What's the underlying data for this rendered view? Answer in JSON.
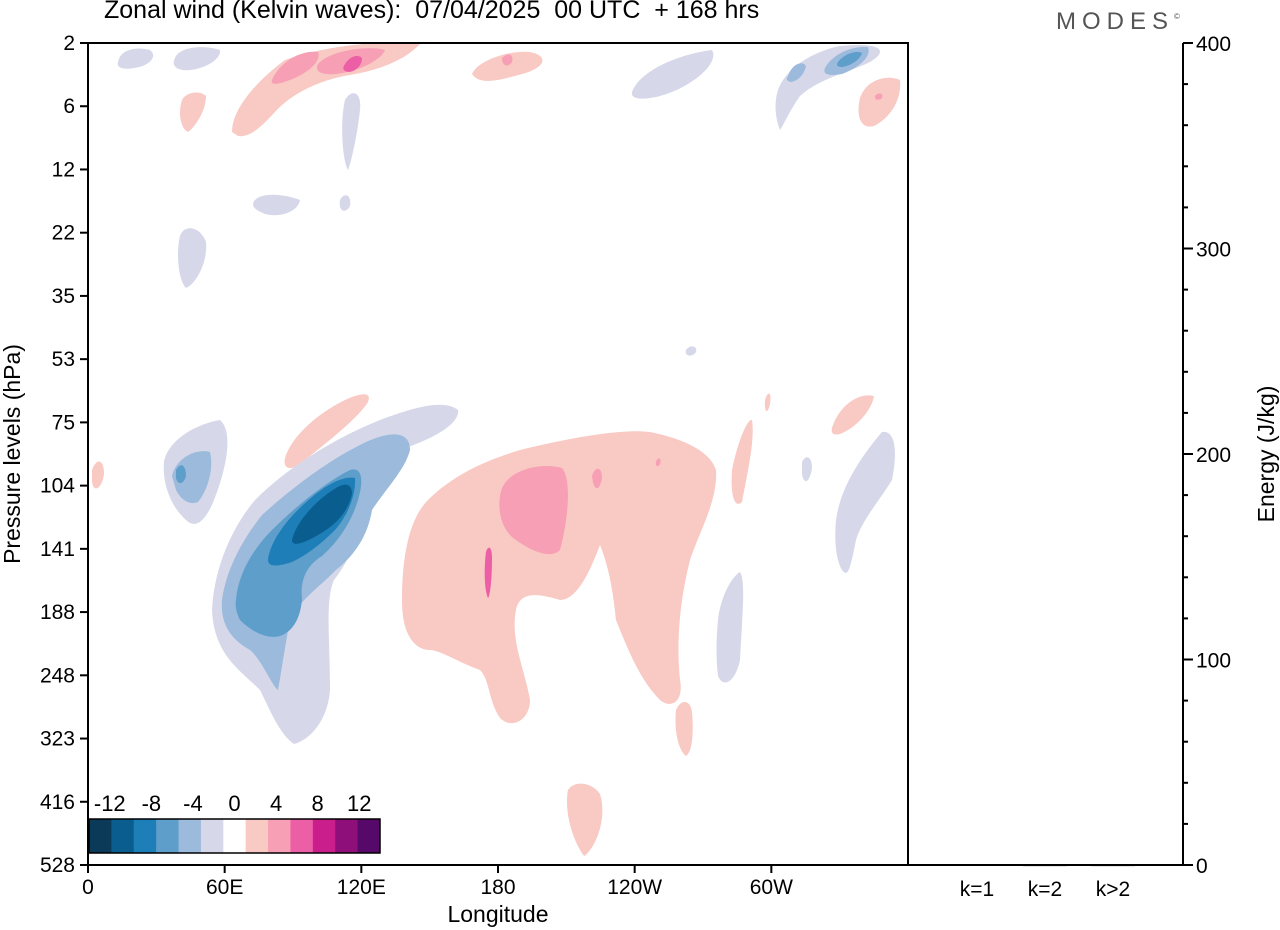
{
  "header": {
    "title": "Zonal wind (Kelvin waves):  07/04/2025  00 UTC  + 168 hrs",
    "brand": "MODES",
    "brand_mark": "©"
  },
  "colors": {
    "neg": [
      "#0b3a59",
      "#0a5e8f",
      "#1e7fb8",
      "#5e9ecb",
      "#9cbadb",
      "#d6d8ea"
    ],
    "neutral": "#ffffff",
    "pos": [
      "#f9c9c4",
      "#f79fb4",
      "#ec5fa6",
      "#cb1e8d",
      "#8e0f79",
      "#57096a"
    ]
  },
  "chart_data": [
    {
      "type": "heatmap",
      "title": "Zonal wind (Kelvin waves):  07/04/2025  00 UTC  + 168 hrs",
      "xlabel": "Longitude",
      "ylabel": "Pressure levels (hPa)",
      "x_ticks": [
        "0",
        "60E",
        "120E",
        "180",
        "120W",
        "60W"
      ],
      "x_tick_values": [
        0,
        60,
        120,
        180,
        240,
        300
      ],
      "xlim": [
        0,
        360
      ],
      "y_ticks": [
        "2",
        "6",
        "12",
        "22",
        "35",
        "53",
        "75",
        "104",
        "141",
        "188",
        "248",
        "323",
        "416",
        "528"
      ],
      "colorbar": {
        "labels": [
          "-12",
          "-8",
          "-4",
          "0",
          "4",
          "8",
          "12"
        ],
        "label_values": [
          -12,
          -8,
          -4,
          0,
          4,
          8,
          12
        ],
        "range": [
          -14,
          14
        ],
        "step": 2
      },
      "regions": [
        {
          "name": "easterly anomaly 60E-130E upper troposphere",
          "lon": [
            55,
            130
          ],
          "level_hPa": [
            75,
            323
          ],
          "min_value": -12,
          "sign": "negative"
        },
        {
          "name": "westerly anomaly 140E-110W",
          "lon": [
            138,
            268
          ],
          "level_hPa": [
            75,
            323
          ],
          "max_value": 6,
          "sign": "positive"
        },
        {
          "name": "stratospheric westerly 80E-140E",
          "lon": [
            80,
            140
          ],
          "level_hPa": [
            2,
            8
          ],
          "max_value": 8,
          "sign": "positive"
        }
      ]
    },
    {
      "type": "bar",
      "categories": [
        "k=1",
        "k=2",
        "k>2"
      ],
      "values": [
        0.3,
        0.2,
        0.2
      ],
      "ylabel": "Energy (J/kg)",
      "ylim": [
        0,
        400
      ],
      "y_ticks": [
        "0",
        "100",
        "200",
        "300",
        "400"
      ],
      "y_tick_values": [
        0,
        100,
        200,
        300,
        400
      ]
    }
  ]
}
